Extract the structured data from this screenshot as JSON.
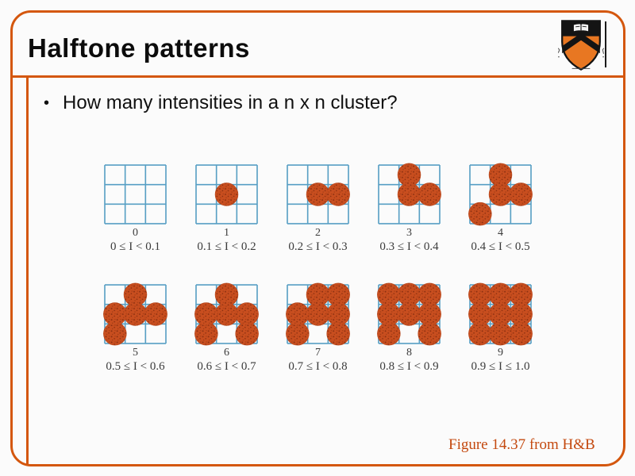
{
  "slide": {
    "title": "Halftone patterns",
    "bullet_marker": "•",
    "bullet": "How many intensities in a n x n cluster?",
    "caption": "Figure 14.37 from H&B"
  },
  "logo": {
    "name": "princeton-university-shield"
  },
  "colors": {
    "border": "#d4570e",
    "caption": "#c4490f",
    "grid_line": "#579fc4",
    "dot_fill": "#c84e1f",
    "dot_speckle": "#8a2f10",
    "label_text": "#3b3b3b",
    "shield_orange": "#e87722",
    "shield_black": "#141414"
  },
  "figure": {
    "grid": "3x3",
    "rows": [
      [
        0,
        1,
        2,
        3,
        4
      ],
      [
        5,
        6,
        7,
        8,
        9
      ]
    ],
    "fill_order": [
      [
        1,
        1
      ],
      [
        1,
        2
      ],
      [
        0,
        1
      ],
      [
        2,
        0
      ],
      [
        1,
        0
      ],
      [
        2,
        2
      ],
      [
        0,
        2
      ],
      [
        0,
        0
      ],
      [
        2,
        1
      ]
    ],
    "patterns": [
      {
        "dots": 0,
        "label": "0",
        "range": "0 ≤ I < 0.1"
      },
      {
        "dots": 1,
        "label": "1",
        "range": "0.1 ≤ I < 0.2"
      },
      {
        "dots": 2,
        "label": "2",
        "range": "0.2 ≤ I < 0.3"
      },
      {
        "dots": 3,
        "label": "3",
        "range": "0.3 ≤ I < 0.4"
      },
      {
        "dots": 4,
        "label": "4",
        "range": "0.4 ≤ I < 0.5"
      },
      {
        "dots": 5,
        "label": "5",
        "range": "0.5 ≤ I < 0.6"
      },
      {
        "dots": 6,
        "label": "6",
        "range": "0.6 ≤ I < 0.7"
      },
      {
        "dots": 7,
        "label": "7",
        "range": "0.7 ≤ I < 0.8"
      },
      {
        "dots": 8,
        "label": "8",
        "range": "0.8 ≤ I < 0.9"
      },
      {
        "dots": 9,
        "label": "9",
        "range": "0.9 ≤ I ≤ 1.0"
      }
    ]
  }
}
